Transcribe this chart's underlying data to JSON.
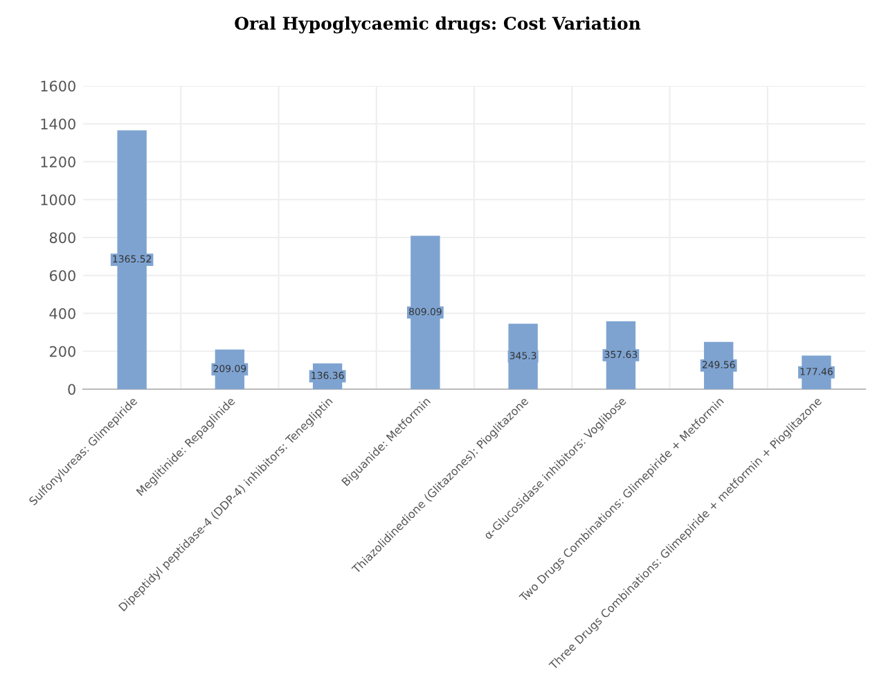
{
  "chart_data": {
    "type": "bar",
    "title": "Oral Hypoglycaemic drugs: Cost Variation",
    "categories": [
      "Sulfonylureas: Glimepiride",
      "Meglitinide: Repaglinide",
      "Dipeptidyl peptidase-4 (DDP-4) inhibitors: Tenegliptin",
      "Biguanide: Metformin",
      "Thiazolidinedione (Glitazones): Pioglitazone",
      "α-Glucosidase inhibitors: Voglibose",
      "Two Drugs Combinations: Glimepiride + Metformin",
      "Three Drugs Combinations: Glimepiride + metformin + Pioglitazone"
    ],
    "values": [
      1365.52,
      209.09,
      136.36,
      809.09,
      345.3,
      357.63,
      249.56,
      177.46
    ],
    "color": "#7ea3d1",
    "ylim": [
      0,
      1600
    ],
    "yticks": [
      0,
      200,
      400,
      600,
      800,
      1000,
      1200,
      1400,
      1600
    ],
    "grid": true,
    "data_labels": true
  }
}
